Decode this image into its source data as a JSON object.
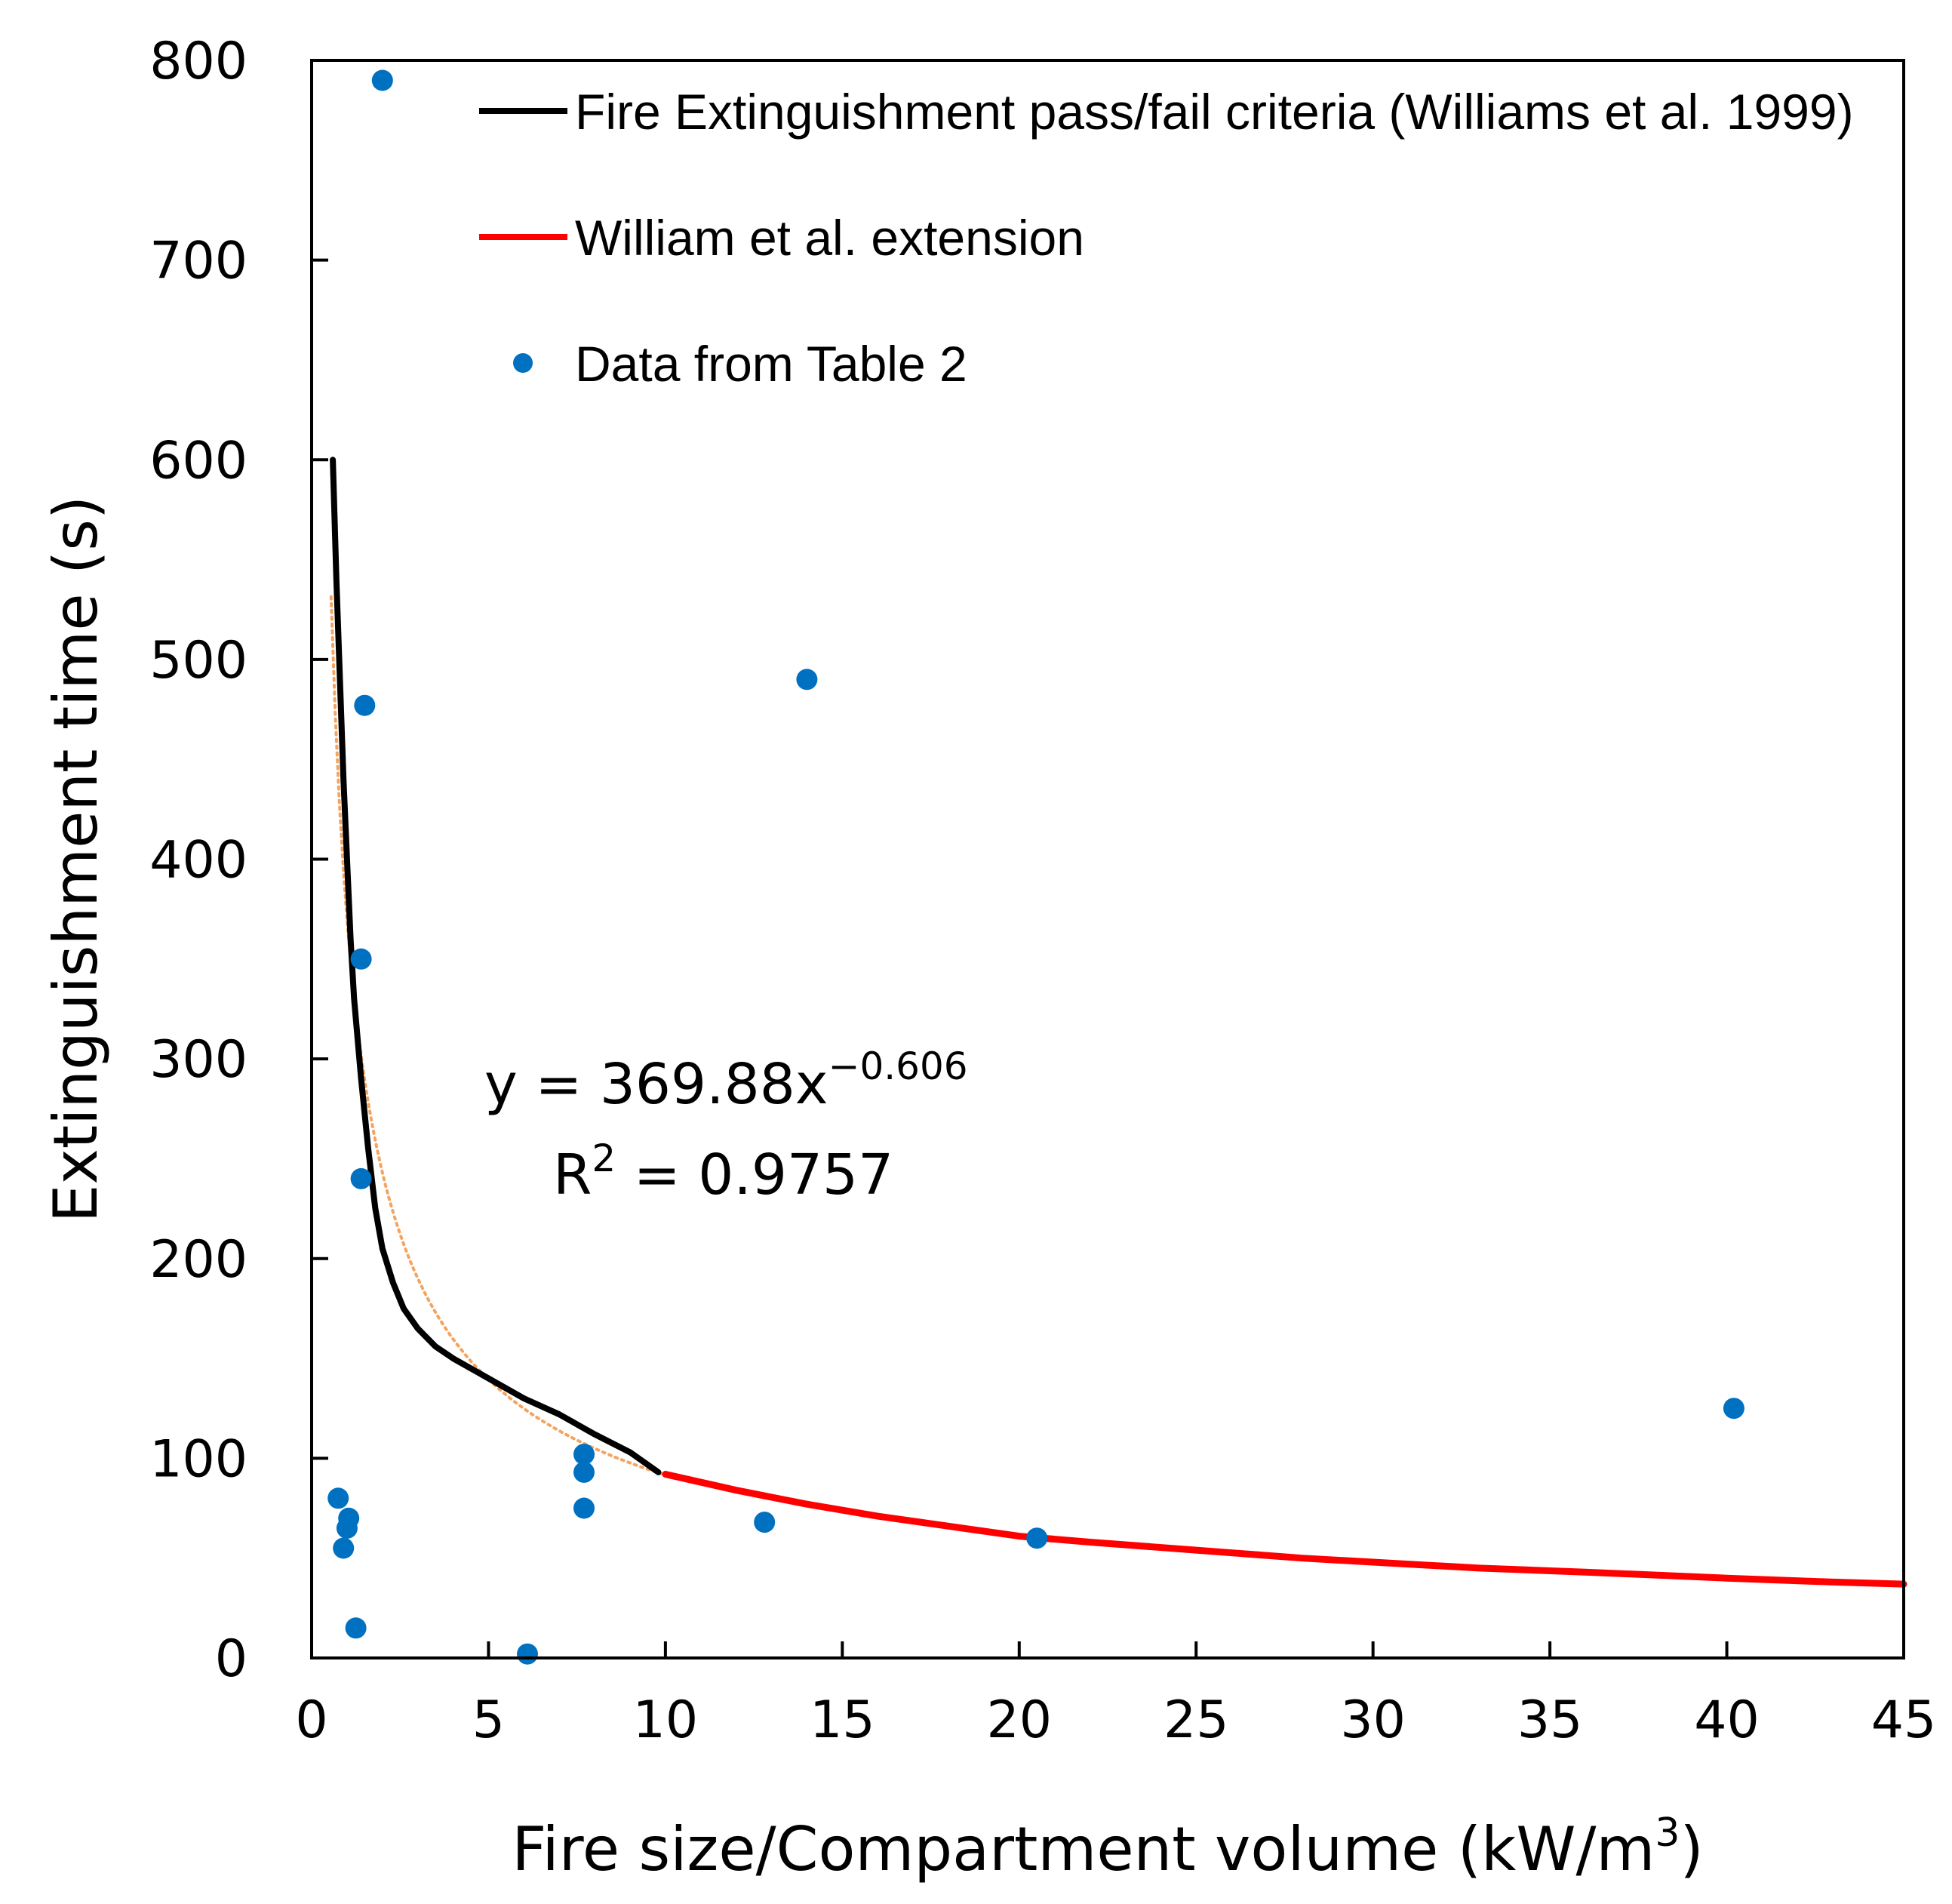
{
  "chart_data": {
    "type": "scatter",
    "xlabel": "Fire size/Compartment volume (kW/m",
    "xlabel_sup": "3",
    "xlabel_end": ")",
    "ylabel": "Extinguishment time (s)",
    "xlim": [
      0,
      45
    ],
    "ylim": [
      0,
      800
    ],
    "x_ticks": [
      0,
      5,
      10,
      15,
      20,
      25,
      30,
      35,
      40,
      45
    ],
    "y_ticks": [
      0,
      100,
      200,
      300,
      400,
      500,
      600,
      700,
      800
    ],
    "grid": false,
    "legend_position": "top-right",
    "series": [
      {
        "name": "Fire Extinguishment pass/fail criteria (Williams et al. 1999)",
        "kind": "line",
        "color": "#000000",
        "x": [
          0.6,
          0.7,
          0.8,
          0.9,
          1.0,
          1.1,
          1.2,
          1.4,
          1.6,
          1.8,
          2.0,
          2.3,
          2.6,
          3.0,
          3.5,
          4.0,
          5.0,
          6.0,
          7.0,
          8.0,
          9.0,
          9.8
        ],
        "y": [
          600,
          540,
          490,
          440,
          400,
          360,
          330,
          290,
          255,
          225,
          205,
          188,
          175,
          165,
          156,
          150,
          140,
          130,
          122,
          112,
          103,
          93
        ]
      },
      {
        "name": "William et al. extension",
        "kind": "line",
        "color": "#ff0000",
        "x": [
          10,
          12,
          14,
          16,
          18,
          20,
          22,
          25,
          28,
          30,
          33,
          36,
          40,
          43,
          45
        ],
        "y": [
          92,
          84,
          77,
          71,
          66,
          61,
          58,
          54,
          50,
          48,
          45,
          43,
          40,
          38,
          37
        ]
      },
      {
        "name": "Data from Table 2",
        "kind": "scatter",
        "color": "#0070c0",
        "points": [
          [
            2.0,
            790
          ],
          [
            1.5,
            477
          ],
          [
            14.0,
            490
          ],
          [
            1.4,
            350
          ],
          [
            1.4,
            240
          ],
          [
            0.75,
            80
          ],
          [
            1.05,
            70
          ],
          [
            1.0,
            65
          ],
          [
            0.9,
            55
          ],
          [
            1.25,
            15
          ],
          [
            6.1,
            2
          ],
          [
            7.7,
            102
          ],
          [
            7.7,
            93
          ],
          [
            7.7,
            75
          ],
          [
            12.8,
            68
          ],
          [
            20.5,
            60
          ],
          [
            40.2,
            125
          ]
        ]
      }
    ],
    "trendline": {
      "color": "#f4a460",
      "style": "dotted",
      "coefficient": 369.88,
      "exponent": -0.606,
      "x_range": [
        0.55,
        9.9
      ]
    },
    "equation": {
      "line1_prefix": "y = 369.88x",
      "line1_sup": "−0.606",
      "line2_prefix": "R",
      "line2_sup": "2",
      "line2_suffix": " = 0.9757"
    }
  }
}
